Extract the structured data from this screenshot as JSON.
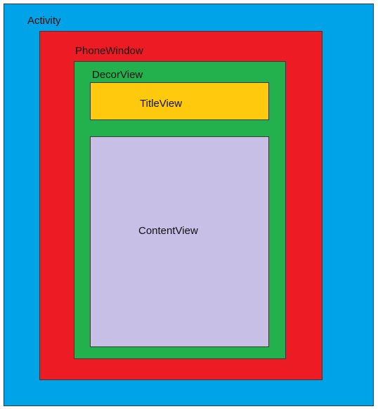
{
  "activity": {
    "label": "Activity",
    "color": "#00a2e8"
  },
  "phone_window": {
    "label": "PhoneWindow",
    "color": "#ed1c24"
  },
  "decor_view": {
    "label": "DecorView",
    "color": "#22b14c"
  },
  "title_view": {
    "label": "TitleView",
    "color": "#ffc90e"
  },
  "content_view": {
    "label": "ContentView",
    "color": "#c8bfe7"
  }
}
